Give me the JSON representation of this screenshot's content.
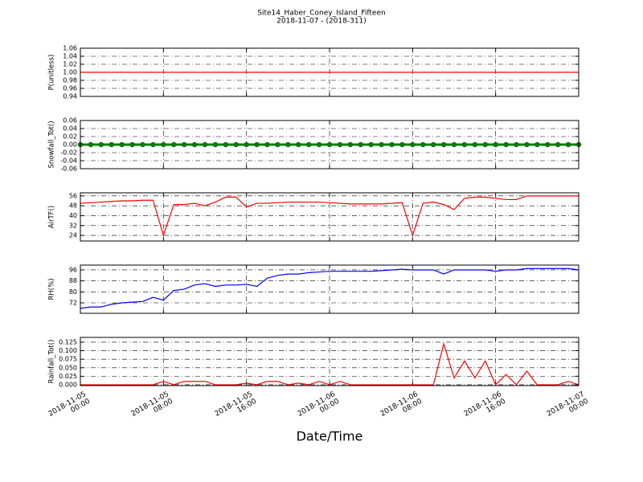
{
  "title": "Site14_Haber_Coney_Island_Fifteen",
  "subtitle": "2018-11-07 - (2018-311)",
  "xlabel": "Date/Time",
  "xlim": [
    "2018-11-05 00:00",
    "2018-11-07 00:00"
  ],
  "xticks": [
    "2018-11-05 00:00",
    "2018-11-05 08:00",
    "2018-11-05 16:00",
    "2018-11-06 00:00",
    "2018-11-06 08:00",
    "2018-11-06 16:00",
    "2018-11-07 00:00"
  ],
  "x": [
    "2018-11-05 00:00",
    "2018-11-05 01:00",
    "2018-11-05 02:00",
    "2018-11-05 03:00",
    "2018-11-05 04:00",
    "2018-11-05 05:00",
    "2018-11-05 06:00",
    "2018-11-05 07:00",
    "2018-11-05 08:00",
    "2018-11-05 09:00",
    "2018-11-05 10:00",
    "2018-11-05 11:00",
    "2018-11-05 12:00",
    "2018-11-05 13:00",
    "2018-11-05 14:00",
    "2018-11-05 15:00",
    "2018-11-05 16:00",
    "2018-11-05 17:00",
    "2018-11-05 18:00",
    "2018-11-05 19:00",
    "2018-11-05 20:00",
    "2018-11-05 21:00",
    "2018-11-05 22:00",
    "2018-11-05 23:00",
    "2018-11-06 00:00",
    "2018-11-06 01:00",
    "2018-11-06 02:00",
    "2018-11-06 03:00",
    "2018-11-06 04:00",
    "2018-11-06 05:00",
    "2018-11-06 06:00",
    "2018-11-06 07:00",
    "2018-11-06 08:00",
    "2018-11-06 09:00",
    "2018-11-06 10:00",
    "2018-11-06 11:00",
    "2018-11-06 12:00",
    "2018-11-06 13:00",
    "2018-11-06 14:00",
    "2018-11-06 15:00",
    "2018-11-06 16:00",
    "2018-11-06 17:00",
    "2018-11-06 18:00",
    "2018-11-06 19:00",
    "2018-11-06 20:00",
    "2018-11-06 21:00",
    "2018-11-06 22:00",
    "2018-11-06 23:00",
    "2018-11-07 00:00"
  ],
  "chart_data": [
    {
      "type": "line",
      "ylabel": "P(unitless)",
      "ylim": [
        0.94,
        1.06
      ],
      "yticks": [
        0.94,
        0.96,
        0.98,
        {
          "value": 1,
          "label": "1.00"
        },
        1.02,
        1.04,
        1.06
      ],
      "grid": true,
      "marker": false,
      "series": [
        {
          "color": "#ff0000",
          "values": [
            1,
            1,
            1,
            1,
            1,
            1,
            1,
            1,
            1,
            1,
            1,
            1,
            1,
            1,
            1,
            1,
            1,
            1,
            1,
            1,
            1,
            1,
            1,
            1,
            1,
            1,
            1,
            1,
            1,
            1,
            1,
            1,
            1,
            1,
            1,
            1,
            1,
            1,
            1,
            1,
            1,
            1,
            1,
            1,
            1,
            1,
            1,
            1,
            1
          ]
        }
      ]
    },
    {
      "type": "line",
      "ylabel": "Snowfall_Tot()",
      "ylim": [
        -0.06,
        0.06
      ],
      "yticks": [
        -0.06,
        -0.04,
        -0.02,
        {
          "value": 0,
          "label": "0.00"
        },
        0.02,
        0.04,
        0.06
      ],
      "grid": true,
      "marker": true,
      "series": [
        {
          "color": "#008000",
          "values": [
            0,
            0,
            0,
            0,
            0,
            0,
            0,
            0,
            0,
            0,
            0,
            0,
            0,
            0,
            0,
            0,
            0,
            0,
            0,
            0,
            0,
            0,
            0,
            0,
            0,
            0,
            0,
            0,
            0,
            0,
            0,
            0,
            0,
            0,
            0,
            0,
            0,
            0,
            0,
            0,
            0,
            0,
            0,
            0,
            0,
            0,
            0,
            0,
            0
          ]
        }
      ]
    },
    {
      "type": "line",
      "ylabel": "AirTF()",
      "ylim": [
        19.5,
        58.5
      ],
      "yticks": [
        24,
        32,
        40,
        48,
        56
      ],
      "grid": true,
      "marker": false,
      "series": [
        {
          "color": "#ff0000",
          "values": [
            50,
            50.5,
            51,
            51.5,
            52,
            52,
            52.5,
            52.5,
            24,
            49,
            49,
            50,
            48,
            51,
            55,
            55,
            47,
            50,
            50,
            50.5,
            51,
            51,
            51,
            51,
            50.5,
            50,
            49.5,
            49.5,
            49.5,
            49.5,
            50,
            50.5,
            24,
            50,
            51,
            49,
            45,
            54,
            55,
            55,
            54,
            53,
            53,
            56,
            56,
            56,
            56,
            56,
            56
          ]
        }
      ]
    },
    {
      "type": "line",
      "ylabel": "RH(%)",
      "ylim": [
        64.4,
        99.5
      ],
      "yticks": [
        72,
        80,
        88,
        96
      ],
      "grid": true,
      "marker": false,
      "series": [
        {
          "color": "#0000ff",
          "values": [
            68,
            69,
            69,
            71,
            72,
            72.5,
            73,
            76,
            74,
            81,
            82,
            85,
            86,
            84,
            85,
            85,
            85.5,
            84,
            90,
            92,
            93,
            93,
            94,
            94.5,
            95,
            95,
            95,
            95,
            95,
            95.5,
            96,
            96.5,
            96,
            96,
            96,
            93,
            96,
            96,
            96,
            96,
            95,
            96,
            96,
            97,
            97,
            97,
            97,
            97,
            96
          ]
        }
      ]
    },
    {
      "type": "line",
      "ylabel": "Rainfall_Tot()",
      "ylim": [
        -0.0024,
        0.139
      ],
      "yticks": [
        {
          "value": 0,
          "label": "0.000"
        },
        0.025,
        {
          "value": 0.05,
          "label": "0.050"
        },
        0.075,
        {
          "value": 0.1,
          "label": "0.100"
        },
        0.125
      ],
      "grid": true,
      "marker": false,
      "series": [
        {
          "color": "#ff0000",
          "values": [
            0,
            0,
            0,
            0,
            0,
            0,
            0,
            0,
            0.01,
            0,
            0.01,
            0.01,
            0.01,
            0,
            0,
            0,
            0.005,
            0,
            0.01,
            0.01,
            0,
            0.005,
            0,
            0.01,
            0,
            0.01,
            0,
            0,
            0,
            0,
            0,
            0,
            0,
            0,
            0,
            0.12,
            0.02,
            0.07,
            0.02,
            0.07,
            0,
            0.03,
            0,
            0.04,
            0,
            0,
            0,
            0.01,
            0
          ]
        }
      ]
    }
  ]
}
